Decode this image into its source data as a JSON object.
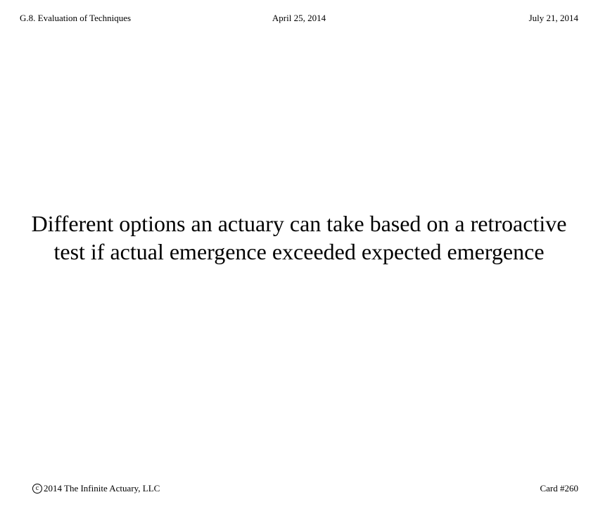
{
  "header": {
    "section": "G.8. Evaluation of Techniques",
    "date_created": "April 25, 2014",
    "date_updated": "July 21, 2014"
  },
  "card": {
    "question": "Different options an actuary can take based on a retroactive test if actual emergence exceeded expected emergence"
  },
  "footer": {
    "copyright_symbol": "c",
    "copyright_text": "2014 The Infinite Actuary, LLC",
    "card_number": "Card #260"
  }
}
